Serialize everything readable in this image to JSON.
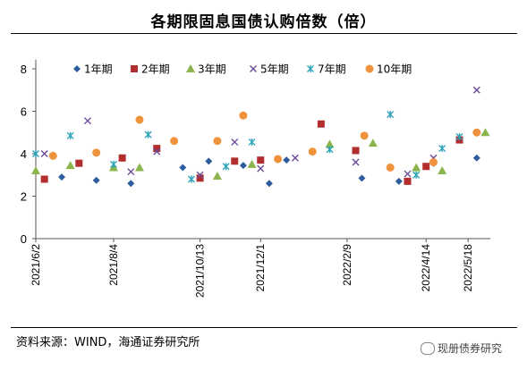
{
  "header": {
    "title": "各期限固息国债认购倍数（倍）"
  },
  "footer": {
    "source": "资料来源：WIND，海通证券研究所",
    "watermark": "现册债券研究"
  },
  "chart_data": {
    "type": "scatter",
    "title": "各期限固息国债认购倍数（倍）",
    "ylim": [
      0,
      8
    ],
    "yticks": [
      0,
      2,
      4,
      6,
      8
    ],
    "xrange": [
      "2021-06-02",
      "2022-06-05"
    ],
    "x_tick_labels": [
      "2021/6/2",
      "2021/8/4",
      "2021/10/13",
      "2021/12/1",
      "2022/2/9",
      "2022/4/14",
      "2022/5/18"
    ],
    "x_tick_dates": [
      "2021-06-02",
      "2021-08-04",
      "2021-10-13",
      "2021-12-01",
      "2022-02-09",
      "2022-04-14",
      "2022-05-18"
    ],
    "legend_position": "top",
    "series": [
      {
        "name": "1年期",
        "marker": "diamond",
        "color": "#2E5D9F",
        "points": [
          [
            "2021-06-23",
            2.9
          ],
          [
            "2021-07-21",
            2.75
          ],
          [
            "2021-08-18",
            2.6
          ],
          [
            "2021-09-29",
            3.35
          ],
          [
            "2021-10-20",
            3.65
          ],
          [
            "2021-11-17",
            3.45
          ],
          [
            "2021-12-08",
            2.6
          ],
          [
            "2021-12-22",
            3.7
          ],
          [
            "2022-02-21",
            2.85
          ],
          [
            "2022-03-23",
            2.7
          ],
          [
            "2022-04-20",
            3.55
          ],
          [
            "2022-05-25",
            3.8
          ]
        ]
      },
      {
        "name": "2年期",
        "marker": "square",
        "color": "#B22D2D",
        "points": [
          [
            "2021-06-09",
            2.8
          ],
          [
            "2021-07-07",
            3.55
          ],
          [
            "2021-08-11",
            3.8
          ],
          [
            "2021-09-08",
            4.25
          ],
          [
            "2021-10-13",
            2.85
          ],
          [
            "2021-11-10",
            3.65
          ],
          [
            "2021-12-01",
            3.7
          ],
          [
            "2022-01-19",
            5.4
          ],
          [
            "2022-02-16",
            4.15
          ],
          [
            "2022-03-30",
            2.7
          ],
          [
            "2022-04-14",
            3.4
          ],
          [
            "2022-05-11",
            4.65
          ]
        ]
      },
      {
        "name": "3年期",
        "marker": "triangle",
        "color": "#8BB54A",
        "points": [
          [
            "2021-06-02",
            3.2
          ],
          [
            "2021-06-30",
            3.45
          ],
          [
            "2021-08-04",
            3.35
          ],
          [
            "2021-08-25",
            3.35
          ],
          [
            "2021-10-27",
            2.95
          ],
          [
            "2021-11-24",
            3.5
          ],
          [
            "2022-01-26",
            4.45
          ],
          [
            "2022-03-02",
            4.5
          ],
          [
            "2022-04-06",
            3.35
          ],
          [
            "2022-04-27",
            3.2
          ],
          [
            "2022-06-01",
            5.0
          ]
        ]
      },
      {
        "name": "5年期",
        "marker": "x",
        "color": "#6A4A97",
        "points": [
          [
            "2021-06-09",
            4.0
          ],
          [
            "2021-07-14",
            5.55
          ],
          [
            "2021-08-18",
            3.15
          ],
          [
            "2021-09-08",
            4.1
          ],
          [
            "2021-10-13",
            3.0
          ],
          [
            "2021-11-10",
            4.55
          ],
          [
            "2021-12-01",
            3.3
          ],
          [
            "2021-12-29",
            3.8
          ],
          [
            "2022-02-16",
            3.6
          ],
          [
            "2022-03-30",
            3.05
          ],
          [
            "2022-04-20",
            3.8
          ],
          [
            "2022-05-25",
            7.0
          ]
        ]
      },
      {
        "name": "7年期",
        "marker": "star",
        "color": "#2BA3B9",
        "points": [
          [
            "2021-06-02",
            4.0
          ],
          [
            "2021-06-30",
            4.85
          ],
          [
            "2021-08-04",
            3.5
          ],
          [
            "2021-09-01",
            4.9
          ],
          [
            "2021-10-06",
            2.8
          ],
          [
            "2021-11-03",
            3.4
          ],
          [
            "2021-11-24",
            4.55
          ],
          [
            "2022-01-26",
            4.2
          ],
          [
            "2022-03-16",
            5.85
          ],
          [
            "2022-04-06",
            3.0
          ],
          [
            "2022-04-27",
            4.25
          ],
          [
            "2022-05-11",
            4.8
          ]
        ]
      },
      {
        "name": "10年期",
        "marker": "circle",
        "color": "#F0923B",
        "points": [
          [
            "2021-06-16",
            3.9
          ],
          [
            "2021-07-21",
            4.05
          ],
          [
            "2021-08-25",
            5.6
          ],
          [
            "2021-09-22",
            4.6
          ],
          [
            "2021-10-27",
            4.6
          ],
          [
            "2021-11-17",
            5.8
          ],
          [
            "2021-12-15",
            3.75
          ],
          [
            "2022-01-12",
            4.1
          ],
          [
            "2022-02-23",
            4.85
          ],
          [
            "2022-03-16",
            3.35
          ],
          [
            "2022-04-20",
            3.6
          ],
          [
            "2022-05-25",
            5.0
          ]
        ]
      }
    ]
  }
}
